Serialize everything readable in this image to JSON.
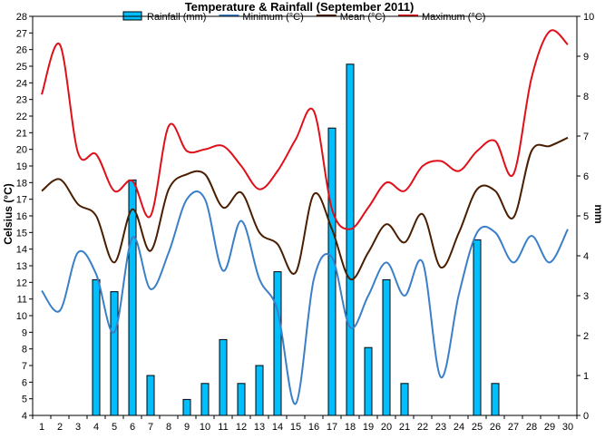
{
  "chart_data": {
    "type": "bar",
    "title": "Temperature & Rainfall (September 2011)",
    "ylabel": "Celsius (°C)",
    "y2label": "mm",
    "xlabel": "",
    "ylim": [
      4,
      28
    ],
    "y2lim": [
      0,
      10
    ],
    "yticks": [
      4,
      5,
      6,
      7,
      8,
      9,
      10,
      11,
      12,
      13,
      14,
      15,
      16,
      17,
      18,
      19,
      20,
      21,
      22,
      23,
      24,
      25,
      26,
      27,
      28
    ],
    "y2ticks": [
      0,
      1,
      2,
      3,
      4,
      5,
      6,
      7,
      8,
      9,
      10
    ],
    "categories": [
      "1",
      "2",
      "3",
      "4",
      "5",
      "6",
      "7",
      "8",
      "9",
      "10",
      "11",
      "12",
      "13",
      "14",
      "15",
      "16",
      "17",
      "18",
      "19",
      "20",
      "21",
      "22",
      "23",
      "24",
      "25",
      "26",
      "27",
      "28",
      "29",
      "30"
    ],
    "legend_position": "top",
    "grid": false,
    "series": [
      {
        "name": "Rainfall (mm)",
        "kind": "bar",
        "axis": "right",
        "color": "#00bfff",
        "values": [
          0,
          0,
          0,
          3.4,
          3.1,
          5.9,
          1.0,
          0,
          0.4,
          0.8,
          1.9,
          0.8,
          1.25,
          3.6,
          0,
          0,
          7.2,
          8.8,
          1.7,
          3.4,
          0.8,
          0,
          0,
          0,
          4.4,
          0.8,
          0,
          0,
          0,
          0
        ]
      },
      {
        "name": "Minimum (°C)",
        "kind": "line",
        "axis": "left",
        "color": "#3a7fc8",
        "values": [
          11.5,
          10.3,
          13.8,
          12.5,
          9.0,
          14.7,
          11.6,
          13.8,
          17.0,
          17.0,
          12.7,
          15.7,
          12.2,
          10.3,
          4.7,
          12.2,
          13.5,
          9.3,
          11.2,
          13.2,
          11.2,
          13.2,
          6.3,
          11.3,
          15.0,
          15.0,
          13.2,
          14.8,
          13.2,
          15.2
        ]
      },
      {
        "name": "Mean (°C)",
        "kind": "line",
        "axis": "left",
        "color": "#4a1e00",
        "values": [
          17.5,
          18.2,
          16.7,
          16.0,
          13.2,
          16.4,
          13.9,
          17.6,
          18.5,
          18.5,
          16.5,
          17.4,
          15.0,
          14.3,
          12.6,
          17.3,
          15.2,
          12.2,
          13.8,
          15.5,
          14.4,
          16.1,
          12.9,
          15.0,
          17.6,
          17.5,
          15.9,
          19.9,
          20.2,
          20.7
        ]
      },
      {
        "name": "Maximum (°C)",
        "kind": "line",
        "axis": "left",
        "color": "#e0101a",
        "values": [
          23.3,
          26.3,
          19.8,
          19.7,
          17.5,
          18.1,
          16.0,
          21.4,
          19.9,
          20.0,
          20.2,
          19.0,
          17.6,
          18.7,
          20.6,
          22.3,
          16.4,
          15.2,
          16.5,
          18.0,
          17.5,
          19.0,
          19.3,
          18.7,
          19.9,
          20.5,
          18.5,
          24.3,
          27.1,
          26.3
        ]
      }
    ]
  }
}
